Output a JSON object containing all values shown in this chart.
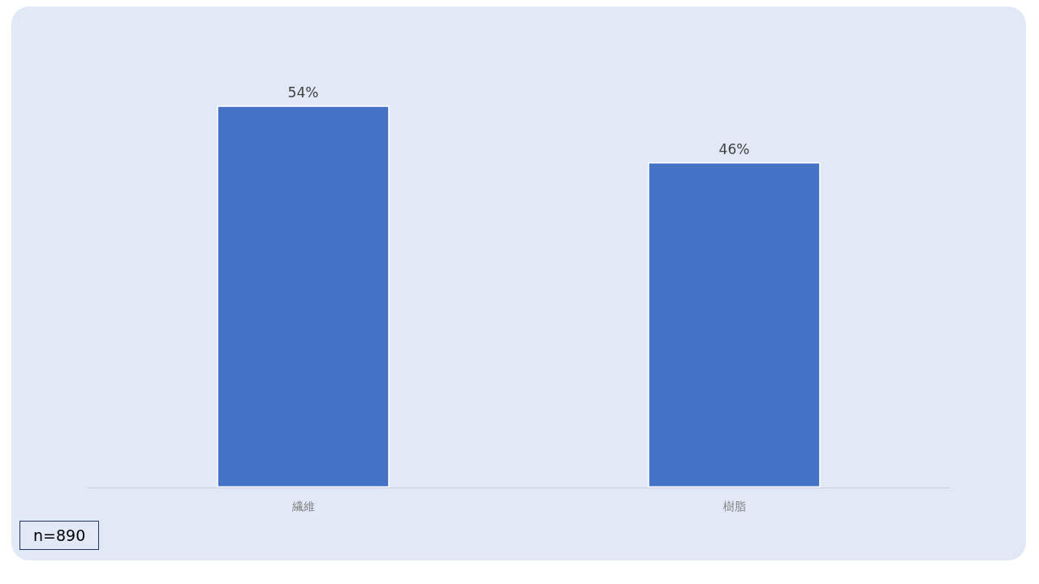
{
  "chart_data": {
    "type": "bar",
    "categories": [
      "繊維",
      "樹脂"
    ],
    "values": [
      54,
      46
    ],
    "value_labels": [
      "54%",
      "46%"
    ],
    "color": "#4472c4",
    "tick_labels": "x",
    "annotations": [
      "n=890"
    ]
  }
}
